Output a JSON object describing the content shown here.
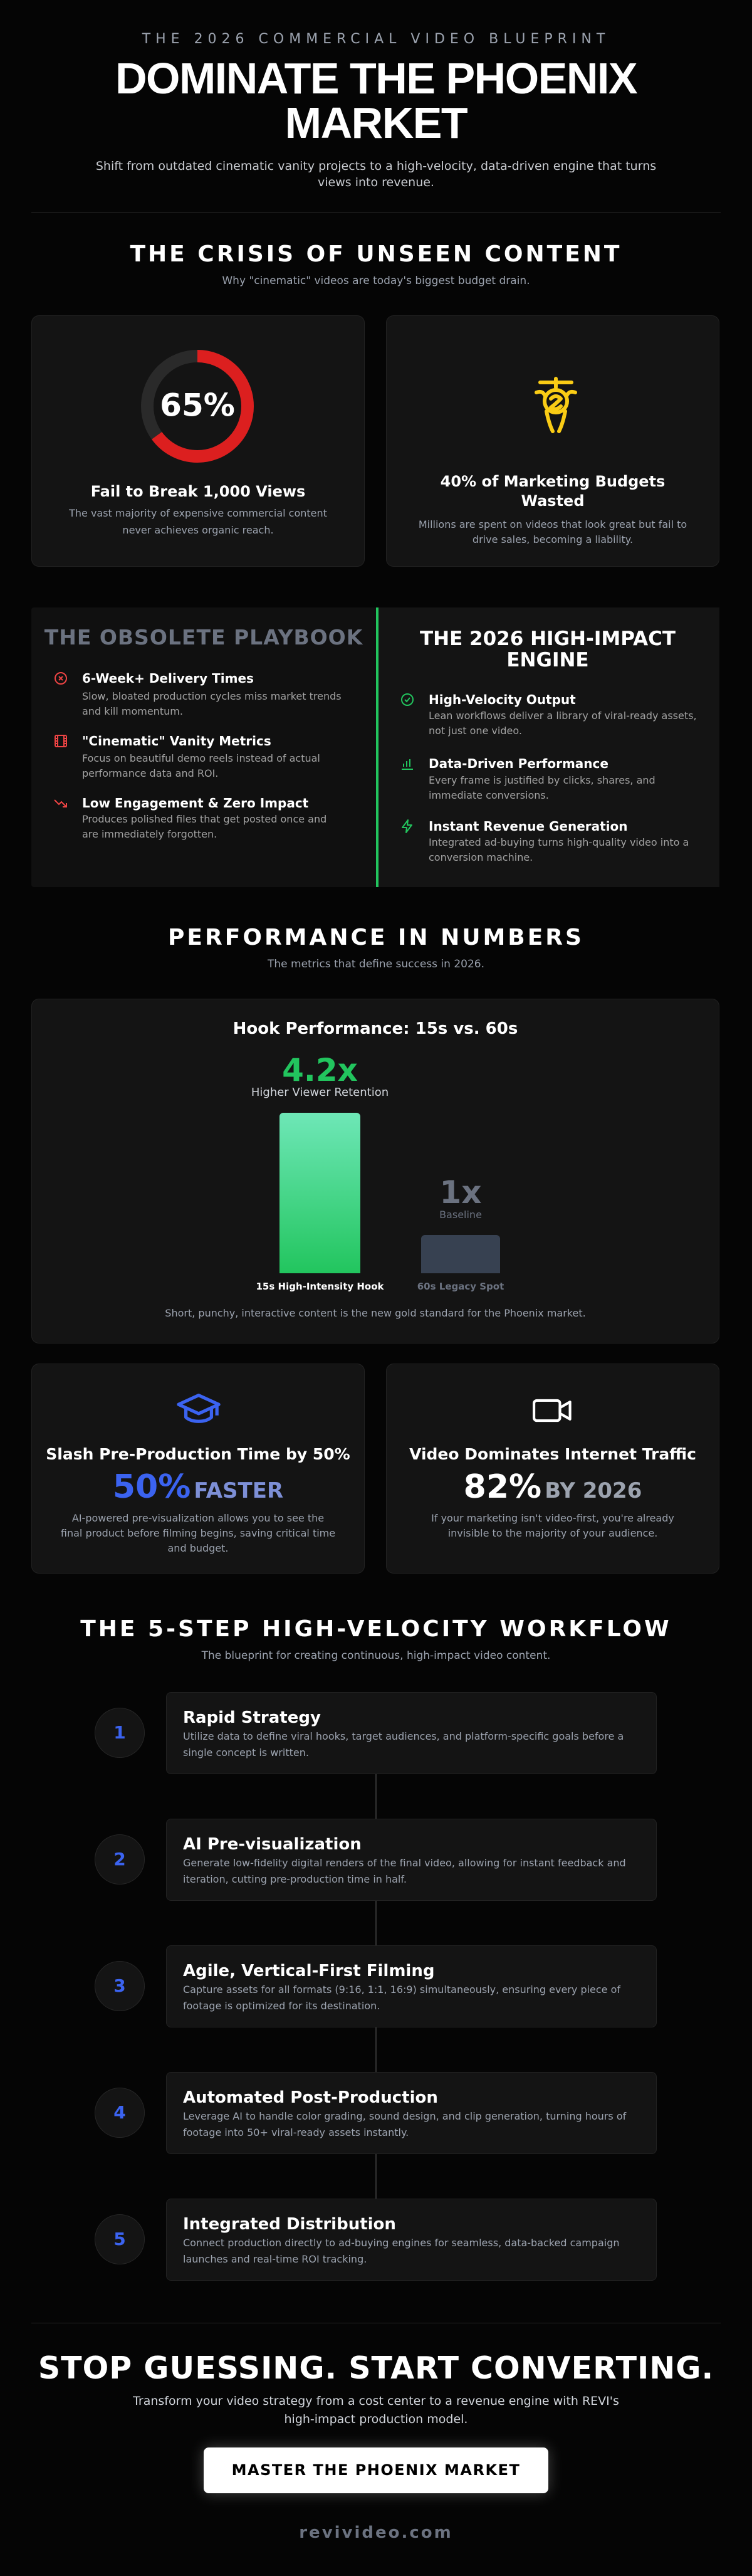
{
  "header": {
    "eyebrow": "THE 2026 COMMERCIAL VIDEO BLUEPRINT",
    "title": "DOMINATE THE PHOENIX MARKET",
    "subtitle": "Shift from outdated cinematic vanity projects to a high-velocity, data-driven engine that turns views into revenue."
  },
  "crisis": {
    "title": "THE CRISIS OF UNSEEN CONTENT",
    "subtitle": "Why \"cinematic\" videos are today's biggest budget drain.",
    "cards": [
      {
        "stat": {
          "value": 65,
          "label": "65%"
        },
        "title": "Fail to Break 1,000 Views",
        "text": "The vast majority of expensive commercial content never achieves organic reach."
      },
      {
        "title": "40% of Marketing Budgets Wasted",
        "text": "Millions are spent on videos that look great but fail to drive sales, becoming a liability."
      }
    ]
  },
  "comparison": {
    "old": {
      "title": "THE OBSOLETE PLAYBOOK",
      "items": [
        {
          "title": "6-Week+ Delivery Times",
          "text": "Slow, bloated production cycles miss market trends and kill momentum."
        },
        {
          "title": "\"Cinematic\" Vanity Metrics",
          "text": "Focus on beautiful demo reels instead of actual performance data and ROI."
        },
        {
          "title": "Low Engagement & Zero Impact",
          "text": "Produces polished files that get posted once and are immediately forgotten."
        }
      ]
    },
    "new": {
      "title": "THE 2026 HIGH-IMPACT ENGINE",
      "items": [
        {
          "title": "High-Velocity Output",
          "text": "Lean workflows deliver a library of viral-ready assets, not just one video."
        },
        {
          "title": "Data-Driven Performance",
          "text": "Every frame is justified by clicks, shares, and immediate conversions."
        },
        {
          "title": "Instant Revenue Generation",
          "text": "Integrated ad-buying turns high-quality video into a conversion machine."
        }
      ]
    }
  },
  "performance": {
    "title": "PERFORMANCE IN NUMBERS",
    "subtitle": "The metrics that define success in 2026.",
    "chart": {
      "title": "Hook Performance: 15s vs. 60s",
      "bars": [
        {
          "value": 4.2,
          "label": "4.2x",
          "caption": "Higher Viewer Retention",
          "name": "15s High-Intensity Hook",
          "color": "#22c55e"
        },
        {
          "value": 1,
          "label": "1x",
          "caption": "Baseline",
          "name": "60s Legacy Spot",
          "color": "#374151"
        }
      ],
      "note": "Short, punchy, interactive content is the new gold standard for the Phoenix market."
    },
    "cards": [
      {
        "title": "Slash Pre-Production Time by 50%",
        "stat": "50%",
        "stat_suffix": "FASTER",
        "text": "AI-powered pre-visualization allows you to see the final product before filming begins, saving critical time and budget."
      },
      {
        "title": "Video Dominates Internet Traffic",
        "stat": "82%",
        "stat_suffix": "BY 2026",
        "text": "If your marketing isn't video-first, you're already invisible to the majority of your audience."
      }
    ]
  },
  "workflow": {
    "title": "THE 5-STEP HIGH-VELOCITY WORKFLOW",
    "subtitle": "The blueprint for creating continuous, high-impact video content.",
    "steps": [
      {
        "number": "1",
        "title": "Rapid Strategy",
        "text": "Utilize data to define viral hooks, target audiences, and platform-specific goals before a single concept is written."
      },
      {
        "number": "2",
        "title": "AI Pre-visualization",
        "text": "Generate low-fidelity digital renders of the final video, allowing for instant feedback and iteration, cutting pre-production time in half."
      },
      {
        "number": "3",
        "title": "Agile, Vertical-First Filming",
        "text": "Capture assets for all formats (9:16, 1:1, 16:9) simultaneously, ensuring every piece of footage is optimized for its destination."
      },
      {
        "number": "4",
        "title": "Automated Post-Production",
        "text": "Leverage AI to handle color grading, sound design, and clip generation, turning hours of footage into 50+ viral-ready assets instantly."
      },
      {
        "number": "5",
        "title": "Integrated Distribution",
        "text": "Connect production directly to ad-buying engines for seamless, data-backed campaign launches and real-time ROI tracking."
      }
    ]
  },
  "cta": {
    "title": "STOP GUESSING. START CONVERTING.",
    "text": "Transform your video strategy from a cost center to a revenue engine with REVI's high-impact production model.",
    "button": "MASTER THE PHOENIX MARKET",
    "footer": "revivideo.com"
  }
}
